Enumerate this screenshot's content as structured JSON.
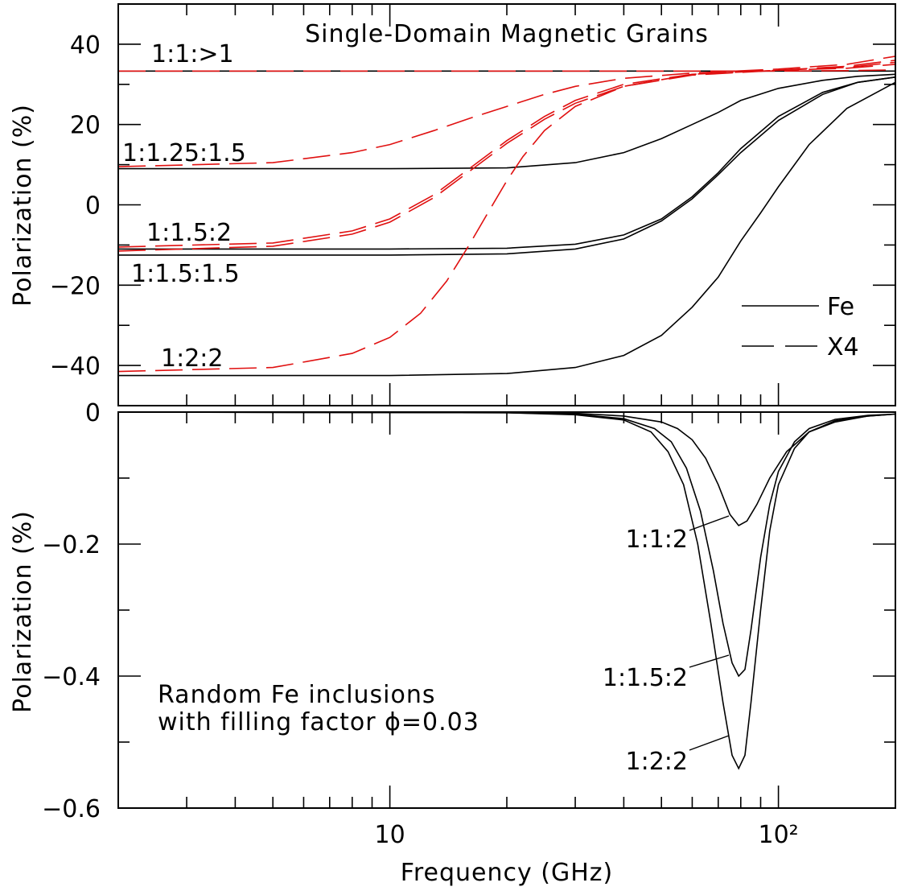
{
  "chart_data": [
    {
      "type": "line",
      "title": "Single-Domain Magnetic Grains",
      "xlabel": "",
      "ylabel": "Polarization (%)",
      "xscale": "log",
      "xlim": [
        2,
        200
      ],
      "ylim": [
        -50,
        50
      ],
      "yticks": [
        -40,
        -20,
        0,
        20,
        40
      ],
      "yticklabels": [
        "−40",
        "−20",
        "0",
        "20",
        "40"
      ],
      "legend": {
        "placement": "bottom-right",
        "entries": [
          {
            "label": "Fe",
            "style": "solid"
          },
          {
            "label": "X4",
            "style": "dashed"
          }
        ]
      },
      "curve_labels": [
        {
          "text": "1:1:>1",
          "anchor_y": 33.5
        },
        {
          "text": "1:1.25:1.5",
          "anchor_y": 9
        },
        {
          "text": "1:1.5:2",
          "anchor_y": -11
        },
        {
          "text": "1:1.5:1.5",
          "anchor_y": -17
        },
        {
          "text": "1:2:2",
          "anchor_y": -38.5
        }
      ],
      "series": [
        {
          "style": "solid",
          "color": "#000000",
          "x": [
            2,
            10,
            30,
            60,
            100,
            150,
            200
          ],
          "y": [
            33.3,
            33.3,
            33.3,
            33.3,
            33.3,
            33.3,
            33.3
          ]
        },
        {
          "style": "solid",
          "color": "#000000",
          "x": [
            2,
            5,
            10,
            20,
            30,
            40,
            50,
            60,
            70,
            80,
            100,
            130,
            160,
            200
          ],
          "y": [
            9,
            9,
            9,
            9.2,
            10.5,
            13,
            16.5,
            20,
            23,
            26,
            29,
            31,
            32,
            32.5
          ]
        },
        {
          "style": "solid",
          "color": "#000000",
          "x": [
            2,
            10,
            20,
            30,
            40,
            50,
            60,
            70,
            80,
            100,
            130,
            160,
            200
          ],
          "y": [
            -11,
            -11,
            -10.8,
            -9.8,
            -7.5,
            -3.5,
            2,
            8,
            14,
            22,
            28,
            30.5,
            31.8
          ]
        },
        {
          "style": "solid",
          "color": "#000000",
          "x": [
            2,
            10,
            20,
            30,
            40,
            50,
            60,
            70,
            80,
            100,
            130,
            160,
            200
          ],
          "y": [
            -12.5,
            -12.5,
            -12.2,
            -11,
            -8.5,
            -4,
            1.5,
            7.5,
            13,
            21,
            27.5,
            30.5,
            31.8
          ]
        },
        {
          "style": "solid",
          "color": "#000000",
          "x": [
            2,
            10,
            20,
            30,
            40,
            50,
            60,
            70,
            80,
            90,
            100,
            120,
            150,
            200
          ],
          "y": [
            -42.5,
            -42.5,
            -42,
            -40.5,
            -37.5,
            -32.5,
            -25.5,
            -18,
            -9,
            -2,
            4.5,
            15,
            24,
            30.5
          ]
        },
        {
          "style": "dashed",
          "color": "#e01010",
          "x": [
            2,
            10,
            50,
            100,
            150,
            200
          ],
          "y": [
            33.3,
            33.3,
            33.3,
            33.3,
            33.4,
            33.6
          ]
        },
        {
          "style": "dashed",
          "color": "#e01010",
          "x": [
            2,
            5,
            8,
            10,
            13,
            16,
            20,
            25,
            30,
            40,
            60,
            100,
            150,
            200
          ],
          "y": [
            9.5,
            10.5,
            13,
            15,
            18.5,
            21.5,
            24.5,
            27.5,
            29.5,
            31.5,
            32.8,
            33.8,
            35,
            37
          ]
        },
        {
          "style": "dashed",
          "color": "#e01010",
          "x": [
            2,
            5,
            8,
            10,
            13,
            16,
            20,
            25,
            30,
            40,
            60,
            100,
            150,
            200
          ],
          "y": [
            -10.5,
            -9.5,
            -6.5,
            -3.5,
            2.5,
            9,
            16,
            22,
            26,
            30,
            32.5,
            33.5,
            34.5,
            36
          ]
        },
        {
          "style": "dashed",
          "color": "#e01010",
          "x": [
            2,
            5,
            8,
            10,
            13,
            16,
            20,
            25,
            30,
            40,
            60,
            100,
            150,
            200
          ],
          "y": [
            -11.5,
            -10.3,
            -7.3,
            -4.3,
            1.8,
            8.3,
            15.3,
            21.3,
            25.3,
            29.5,
            32.3,
            33.5,
            34.2,
            35.5
          ]
        },
        {
          "style": "dashed",
          "color": "#e01010",
          "x": [
            2,
            5,
            8,
            10,
            12,
            14,
            16,
            18,
            20,
            22,
            25,
            30,
            40,
            60,
            100,
            150,
            200
          ],
          "y": [
            -41.5,
            -40.5,
            -37,
            -33,
            -27,
            -19,
            -10,
            -1.5,
            6,
            12,
            18.5,
            24.5,
            29.5,
            32.5,
            33.5,
            34,
            35
          ]
        }
      ]
    },
    {
      "type": "line",
      "title": "",
      "xlabel": "Frequency (GHz)",
      "ylabel": "Polarization (%)",
      "xscale": "log",
      "xlim": [
        2,
        200
      ],
      "ylim": [
        -0.6,
        0.0
      ],
      "xticks": [
        10,
        100
      ],
      "xticklabels": [
        "10",
        "10²"
      ],
      "yticks": [
        -0.6,
        -0.4,
        -0.2,
        0
      ],
      "yticklabels": [
        "−0.6",
        "−0.4",
        "−0.2",
        "0"
      ],
      "annotation": [
        "Random Fe inclusions",
        "with filling factor ϕ=0.03"
      ],
      "curve_labels": [
        {
          "text": "1:1:2",
          "point": [
            73,
            -0.157
          ]
        },
        {
          "text": "1:1.5:2",
          "point": [
            73,
            -0.37
          ]
        },
        {
          "text": "1:2:2",
          "point": [
            73,
            -0.49
          ]
        }
      ],
      "series": [
        {
          "style": "solid",
          "color": "#000000",
          "x": [
            2,
            20,
            30,
            40,
            50,
            55,
            60,
            65,
            70,
            75,
            79,
            83,
            88,
            95,
            105,
            120,
            140,
            170,
            200
          ],
          "y": [
            0,
            0,
            -0.002,
            -0.006,
            -0.015,
            -0.025,
            -0.042,
            -0.07,
            -0.11,
            -0.155,
            -0.172,
            -0.165,
            -0.14,
            -0.1,
            -0.06,
            -0.03,
            -0.015,
            -0.006,
            -0.003
          ]
        },
        {
          "style": "solid",
          "color": "#000000",
          "x": [
            2,
            20,
            30,
            40,
            48,
            53,
            58,
            63,
            68,
            72,
            76,
            79,
            82,
            85,
            90,
            95,
            100,
            110,
            120,
            140,
            170,
            200
          ],
          "y": [
            0,
            -0.001,
            -0.003,
            -0.01,
            -0.025,
            -0.045,
            -0.085,
            -0.15,
            -0.24,
            -0.32,
            -0.38,
            -0.4,
            -0.39,
            -0.33,
            -0.22,
            -0.14,
            -0.09,
            -0.045,
            -0.025,
            -0.011,
            -0.005,
            -0.003
          ]
        },
        {
          "style": "solid",
          "color": "#000000",
          "x": [
            2,
            20,
            30,
            40,
            47,
            52,
            57,
            62,
            67,
            72,
            76,
            79,
            82,
            85,
            90,
            95,
            100,
            110,
            120,
            140,
            170,
            200
          ],
          "y": [
            0,
            -0.001,
            -0.004,
            -0.012,
            -0.03,
            -0.06,
            -0.11,
            -0.2,
            -0.32,
            -0.44,
            -0.52,
            -0.54,
            -0.52,
            -0.44,
            -0.3,
            -0.18,
            -0.11,
            -0.055,
            -0.03,
            -0.013,
            -0.006,
            -0.003
          ]
        }
      ]
    }
  ]
}
